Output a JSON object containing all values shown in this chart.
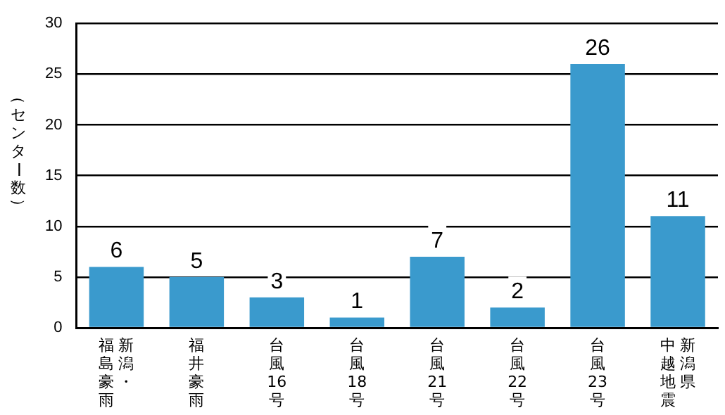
{
  "chart_data": {
    "type": "bar",
    "ylabel": "（センター数）",
    "categories": [
      "新潟・福島豪雨",
      "福井豪雨",
      "台風16号",
      "台風18号",
      "台風21号",
      "台風22号",
      "台風23号",
      "新潟県中越地震"
    ],
    "values": [
      6,
      5,
      3,
      1,
      7,
      2,
      26,
      11
    ],
    "color": "#3a9acd",
    "ylim": [
      0,
      30
    ],
    "yticks": [
      0,
      5,
      10,
      15,
      20,
      25,
      30
    ],
    "grid": "y",
    "data_labels": true
  }
}
